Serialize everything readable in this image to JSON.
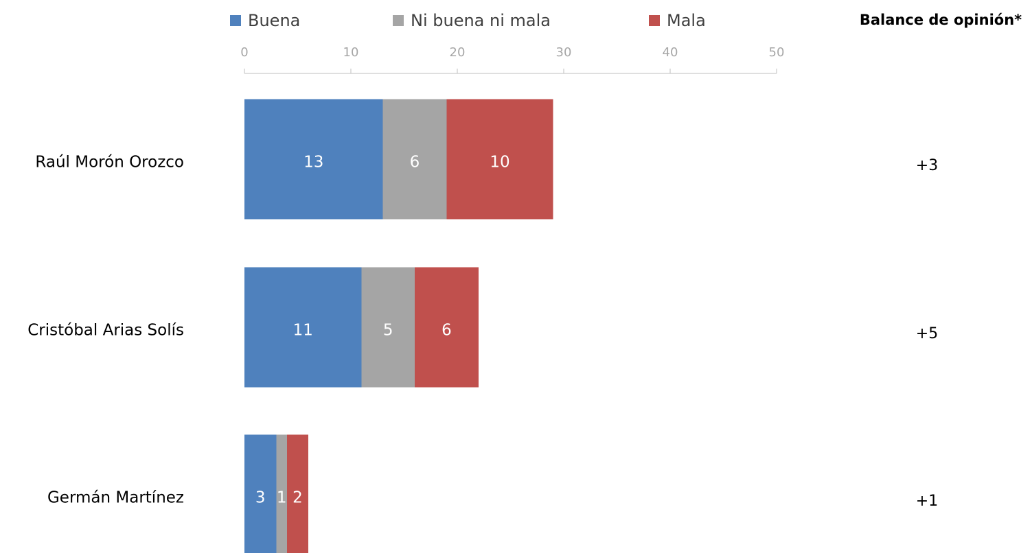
{
  "chart_data": {
    "type": "stacked-bar-horizontal",
    "categories": [
      "Raúl Morón Orozco",
      "Cristóbal Arias Solís",
      "Germán Martínez"
    ],
    "series": [
      {
        "name": "Buena",
        "color": "#4f81bd",
        "values": [
          13,
          11,
          3
        ]
      },
      {
        "name": "Ni buena ni mala",
        "color": "#a5a5a5",
        "values": [
          6,
          5,
          1
        ]
      },
      {
        "name": "Mala",
        "color": "#c0504d",
        "values": [
          10,
          6,
          2
        ]
      }
    ],
    "xlim": [
      0,
      50
    ],
    "xticks": [
      0,
      10,
      20,
      30,
      40,
      50
    ],
    "balance_title": "Balance de opinión*",
    "balance_labels": [
      "+3",
      "+5",
      "+1"
    ]
  }
}
